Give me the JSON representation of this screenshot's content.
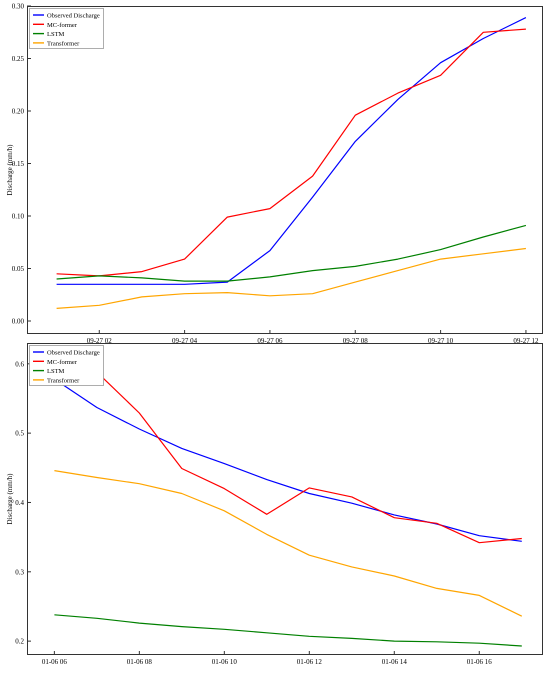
{
  "chart_data": [
    {
      "type": "line",
      "title": "",
      "xlabel": "",
      "ylabel": "Discharge (mm/h)",
      "x": [
        1,
        2,
        3,
        4,
        5,
        6,
        7,
        8,
        9,
        10,
        11,
        12
      ],
      "x_ticks": [
        {
          "value": 2,
          "label": "09-27 02"
        },
        {
          "value": 4,
          "label": "09-27 04"
        },
        {
          "value": 6,
          "label": "09-27 06"
        },
        {
          "value": 8,
          "label": "09-27 08"
        },
        {
          "value": 10,
          "label": "09-27 10"
        },
        {
          "value": 12,
          "label": "09-27 12"
        }
      ],
      "xlim": [
        0.4,
        12.4
      ],
      "ylim": [
        0,
        0.3
      ],
      "y_ticks": [
        0.0,
        0.05,
        0.1,
        0.15,
        0.2,
        0.25,
        0.3
      ],
      "y_tick_labels": [
        "0.00",
        "0.05",
        "0.10",
        "0.15",
        "0.20",
        "0.25",
        "0.30"
      ],
      "grid": false,
      "legend": "top-left",
      "series": [
        {
          "name": "Observed Discharge",
          "color": "#0000ff",
          "values": [
            0.035,
            0.035,
            0.035,
            0.035,
            0.037,
            0.067,
            0.118,
            0.171,
            0.211,
            0.246,
            0.269,
            0.289
          ]
        },
        {
          "name": "MC-former",
          "color": "#ff0000",
          "values": [
            0.045,
            0.043,
            0.047,
            0.059,
            0.099,
            0.107,
            0.138,
            0.196,
            0.217,
            0.234,
            0.275,
            0.278
          ]
        },
        {
          "name": "LSTM",
          "color": "#008000",
          "values": [
            0.04,
            0.043,
            0.041,
            0.038,
            0.038,
            0.042,
            0.048,
            0.052,
            0.059,
            0.068,
            0.08,
            0.091
          ]
        },
        {
          "name": "Transformer",
          "color": "#ffa500",
          "values": [
            0.012,
            0.015,
            0.023,
            0.026,
            0.027,
            0.024,
            0.026,
            0.037,
            0.048,
            0.059,
            0.064,
            0.069
          ]
        }
      ]
    },
    {
      "type": "line",
      "title": "",
      "xlabel": "",
      "ylabel": "Discharge (mm/h)",
      "x": [
        6,
        7,
        8,
        9,
        10,
        11,
        12,
        13,
        14,
        15,
        16,
        17
      ],
      "x_ticks": [
        {
          "value": 6,
          "label": "01-06 06"
        },
        {
          "value": 8,
          "label": "01-06 08"
        },
        {
          "value": 10,
          "label": "01-06 10"
        },
        {
          "value": 12,
          "label": "01-06 12"
        },
        {
          "value": 14,
          "label": "01-06 14"
        },
        {
          "value": 16,
          "label": "01-06 16"
        }
      ],
      "xlim": [
        5.45,
        17.5
      ],
      "ylim": [
        0.18,
        0.63
      ],
      "y_ticks": [
        0.2,
        0.3,
        0.4,
        0.5,
        0.6
      ],
      "y_tick_labels": [
        "0.2",
        "0.3",
        "0.4",
        "0.5",
        "0.6"
      ],
      "grid": false,
      "legend": "top-left",
      "series": [
        {
          "name": "Observed Discharge",
          "color": "#0000ff",
          "values": [
            0.578,
            0.537,
            0.506,
            0.478,
            0.456,
            0.433,
            0.413,
            0.399,
            0.382,
            0.369,
            0.352,
            0.344
          ]
        },
        {
          "name": "MC-former",
          "color": "#ff0000",
          "values": [
            0.605,
            0.588,
            0.529,
            0.449,
            0.42,
            0.383,
            0.421,
            0.408,
            0.378,
            0.37,
            0.342,
            0.348
          ]
        },
        {
          "name": "LSTM",
          "color": "#008000",
          "values": [
            0.238,
            0.233,
            0.226,
            0.221,
            0.217,
            0.212,
            0.207,
            0.204,
            0.2,
            0.199,
            0.197,
            0.193
          ]
        },
        {
          "name": "Transformer",
          "color": "#ffa500",
          "values": [
            0.446,
            0.436,
            0.427,
            0.413,
            0.388,
            0.354,
            0.324,
            0.307,
            0.294,
            0.276,
            0.266,
            0.236
          ]
        }
      ]
    }
  ]
}
